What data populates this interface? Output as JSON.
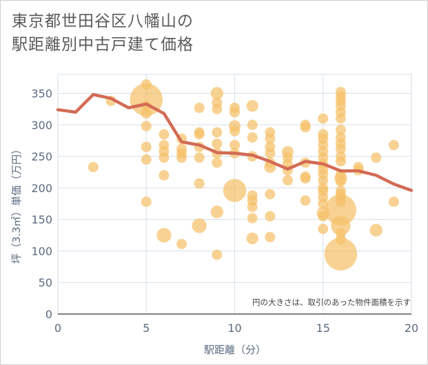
{
  "title": {
    "line1": "東京都世田谷区八幡山の",
    "line2": "駅距離別中古戸建て価格"
  },
  "chart_data": {
    "type": "scatter",
    "title": "東京都世田谷区八幡山の駅距離別中古戸建て価格",
    "xlabel": "駅距離（分）",
    "ylabel": "坪（3.3㎡）単価（万円）",
    "xlim": [
      0,
      20
    ],
    "ylim": [
      0,
      380
    ],
    "xticks": [
      "0",
      "5",
      "10",
      "15",
      "20"
    ],
    "yticks": [
      "0",
      "50",
      "100",
      "150",
      "200",
      "250",
      "300",
      "350"
    ],
    "grid": true,
    "annotation": "円の大きさは、取引のあった物件面積を示す",
    "colors": {
      "bubble": "#f5c06a",
      "line": "#d36b55",
      "axis_text": "#5a6a80"
    },
    "series": [
      {
        "kind": "bubble",
        "points": [
          {
            "x": 2,
            "y": 233,
            "s": 1
          },
          {
            "x": 3,
            "y": 338,
            "s": 1
          },
          {
            "x": 5,
            "y": 364,
            "s": 1
          },
          {
            "x": 5,
            "y": 340,
            "s": 10
          },
          {
            "x": 5,
            "y": 330,
            "s": 1
          },
          {
            "x": 5,
            "y": 318,
            "s": 1
          },
          {
            "x": 5,
            "y": 298,
            "s": 1
          },
          {
            "x": 5,
            "y": 265,
            "s": 1
          },
          {
            "x": 5,
            "y": 245,
            "s": 1
          },
          {
            "x": 5,
            "y": 178,
            "s": 1
          },
          {
            "x": 6,
            "y": 285,
            "s": 1
          },
          {
            "x": 6,
            "y": 268,
            "s": 1
          },
          {
            "x": 6,
            "y": 258,
            "s": 1
          },
          {
            "x": 6,
            "y": 248,
            "s": 1
          },
          {
            "x": 6,
            "y": 220,
            "s": 1
          },
          {
            "x": 6,
            "y": 125,
            "s": 2
          },
          {
            "x": 7,
            "y": 278,
            "s": 1
          },
          {
            "x": 7,
            "y": 262,
            "s": 1
          },
          {
            "x": 7,
            "y": 255,
            "s": 1
          },
          {
            "x": 7,
            "y": 248,
            "s": 1
          },
          {
            "x": 7,
            "y": 111,
            "s": 1
          },
          {
            "x": 8,
            "y": 327,
            "s": 1
          },
          {
            "x": 8,
            "y": 288,
            "s": 1
          },
          {
            "x": 8,
            "y": 285,
            "s": 1
          },
          {
            "x": 8,
            "y": 265,
            "s": 1
          },
          {
            "x": 8,
            "y": 248,
            "s": 1
          },
          {
            "x": 8,
            "y": 207,
            "s": 1
          },
          {
            "x": 8,
            "y": 140,
            "s": 2
          },
          {
            "x": 9,
            "y": 350,
            "s": 1.5
          },
          {
            "x": 9,
            "y": 335,
            "s": 1
          },
          {
            "x": 9,
            "y": 325,
            "s": 1
          },
          {
            "x": 9,
            "y": 288,
            "s": 1
          },
          {
            "x": 9,
            "y": 270,
            "s": 1
          },
          {
            "x": 9,
            "y": 255,
            "s": 1
          },
          {
            "x": 9,
            "y": 240,
            "s": 1
          },
          {
            "x": 9,
            "y": 162,
            "s": 1.5
          },
          {
            "x": 9,
            "y": 94,
            "s": 1
          },
          {
            "x": 10,
            "y": 327,
            "s": 1
          },
          {
            "x": 10,
            "y": 320,
            "s": 1
          },
          {
            "x": 10,
            "y": 298,
            "s": 1.3
          },
          {
            "x": 10,
            "y": 290,
            "s": 1
          },
          {
            "x": 10,
            "y": 268,
            "s": 1
          },
          {
            "x": 10,
            "y": 255,
            "s": 1
          },
          {
            "x": 10,
            "y": 196,
            "s": 5
          },
          {
            "x": 11,
            "y": 330,
            "s": 1.3
          },
          {
            "x": 11,
            "y": 300,
            "s": 1
          },
          {
            "x": 11,
            "y": 280,
            "s": 1
          },
          {
            "x": 11,
            "y": 250,
            "s": 1
          },
          {
            "x": 11,
            "y": 188,
            "s": 1
          },
          {
            "x": 11,
            "y": 180,
            "s": 1
          },
          {
            "x": 11,
            "y": 170,
            "s": 1
          },
          {
            "x": 11,
            "y": 152,
            "s": 1
          },
          {
            "x": 11,
            "y": 120,
            "s": 1.3
          },
          {
            "x": 12,
            "y": 288,
            "s": 1
          },
          {
            "x": 12,
            "y": 278,
            "s": 1
          },
          {
            "x": 12,
            "y": 265,
            "s": 1
          },
          {
            "x": 12,
            "y": 255,
            "s": 1
          },
          {
            "x": 12,
            "y": 240,
            "s": 1
          },
          {
            "x": 12,
            "y": 233,
            "s": 1.3
          },
          {
            "x": 12,
            "y": 190,
            "s": 1
          },
          {
            "x": 12,
            "y": 155,
            "s": 1
          },
          {
            "x": 12,
            "y": 122,
            "s": 1
          },
          {
            "x": 13,
            "y": 257,
            "s": 1.3
          },
          {
            "x": 13,
            "y": 248,
            "s": 1
          },
          {
            "x": 13,
            "y": 238,
            "s": 1
          },
          {
            "x": 13,
            "y": 228,
            "s": 1
          },
          {
            "x": 13,
            "y": 212,
            "s": 1
          },
          {
            "x": 14,
            "y": 300,
            "s": 1
          },
          {
            "x": 14,
            "y": 296,
            "s": 1
          },
          {
            "x": 14,
            "y": 240,
            "s": 1
          },
          {
            "x": 14,
            "y": 218,
            "s": 1
          },
          {
            "x": 14,
            "y": 215,
            "s": 1
          },
          {
            "x": 14,
            "y": 180,
            "s": 1
          },
          {
            "x": 15,
            "y": 310,
            "s": 1
          },
          {
            "x": 15,
            "y": 285,
            "s": 1
          },
          {
            "x": 15,
            "y": 278,
            "s": 1
          },
          {
            "x": 15,
            "y": 268,
            "s": 1
          },
          {
            "x": 15,
            "y": 258,
            "s": 1
          },
          {
            "x": 15,
            "y": 248,
            "s": 1
          },
          {
            "x": 15,
            "y": 238,
            "s": 1
          },
          {
            "x": 15,
            "y": 230,
            "s": 1
          },
          {
            "x": 15,
            "y": 222,
            "s": 1
          },
          {
            "x": 15,
            "y": 212,
            "s": 1
          },
          {
            "x": 15,
            "y": 200,
            "s": 1
          },
          {
            "x": 15,
            "y": 195,
            "s": 1
          },
          {
            "x": 15,
            "y": 185,
            "s": 1
          },
          {
            "x": 15,
            "y": 175,
            "s": 1
          },
          {
            "x": 15,
            "y": 160,
            "s": 1.5
          },
          {
            "x": 15,
            "y": 155,
            "s": 1
          },
          {
            "x": 15,
            "y": 135,
            "s": 1
          },
          {
            "x": 16,
            "y": 352,
            "s": 1
          },
          {
            "x": 16,
            "y": 345,
            "s": 1
          },
          {
            "x": 16,
            "y": 338,
            "s": 1
          },
          {
            "x": 16,
            "y": 330,
            "s": 1
          },
          {
            "x": 16,
            "y": 320,
            "s": 1
          },
          {
            "x": 16,
            "y": 310,
            "s": 1
          },
          {
            "x": 16,
            "y": 292,
            "s": 1
          },
          {
            "x": 16,
            "y": 280,
            "s": 1
          },
          {
            "x": 16,
            "y": 270,
            "s": 1
          },
          {
            "x": 16,
            "y": 262,
            "s": 1
          },
          {
            "x": 16,
            "y": 250,
            "s": 1
          },
          {
            "x": 16,
            "y": 242,
            "s": 1
          },
          {
            "x": 16,
            "y": 222,
            "s": 1
          },
          {
            "x": 16,
            "y": 215,
            "s": 1.5
          },
          {
            "x": 16,
            "y": 210,
            "s": 1
          },
          {
            "x": 16,
            "y": 195,
            "s": 1
          },
          {
            "x": 16,
            "y": 190,
            "s": 1
          },
          {
            "x": 16,
            "y": 185,
            "s": 1
          },
          {
            "x": 16,
            "y": 178,
            "s": 1
          },
          {
            "x": 16,
            "y": 165,
            "s": 9
          },
          {
            "x": 16,
            "y": 140,
            "s": 3.5
          },
          {
            "x": 16,
            "y": 128,
            "s": 1
          },
          {
            "x": 16,
            "y": 118,
            "s": 1
          },
          {
            "x": 16,
            "y": 95,
            "s": 10
          },
          {
            "x": 17,
            "y": 233,
            "s": 1
          },
          {
            "x": 17,
            "y": 228,
            "s": 1
          },
          {
            "x": 18,
            "y": 248,
            "s": 1
          },
          {
            "x": 18,
            "y": 133,
            "s": 1.5
          },
          {
            "x": 19,
            "y": 268,
            "s": 1
          },
          {
            "x": 19,
            "y": 178,
            "s": 1
          }
        ]
      },
      {
        "kind": "line",
        "x": [
          0,
          1,
          2,
          3,
          4,
          5,
          6,
          7,
          8,
          9,
          10,
          11,
          12,
          13,
          14,
          15,
          16,
          17,
          18,
          19,
          20
        ],
        "y": [
          324,
          320,
          348,
          342,
          327,
          333,
          318,
          273,
          268,
          256,
          255,
          252,
          242,
          230,
          242,
          238,
          227,
          227,
          220,
          206,
          196
        ]
      }
    ]
  }
}
